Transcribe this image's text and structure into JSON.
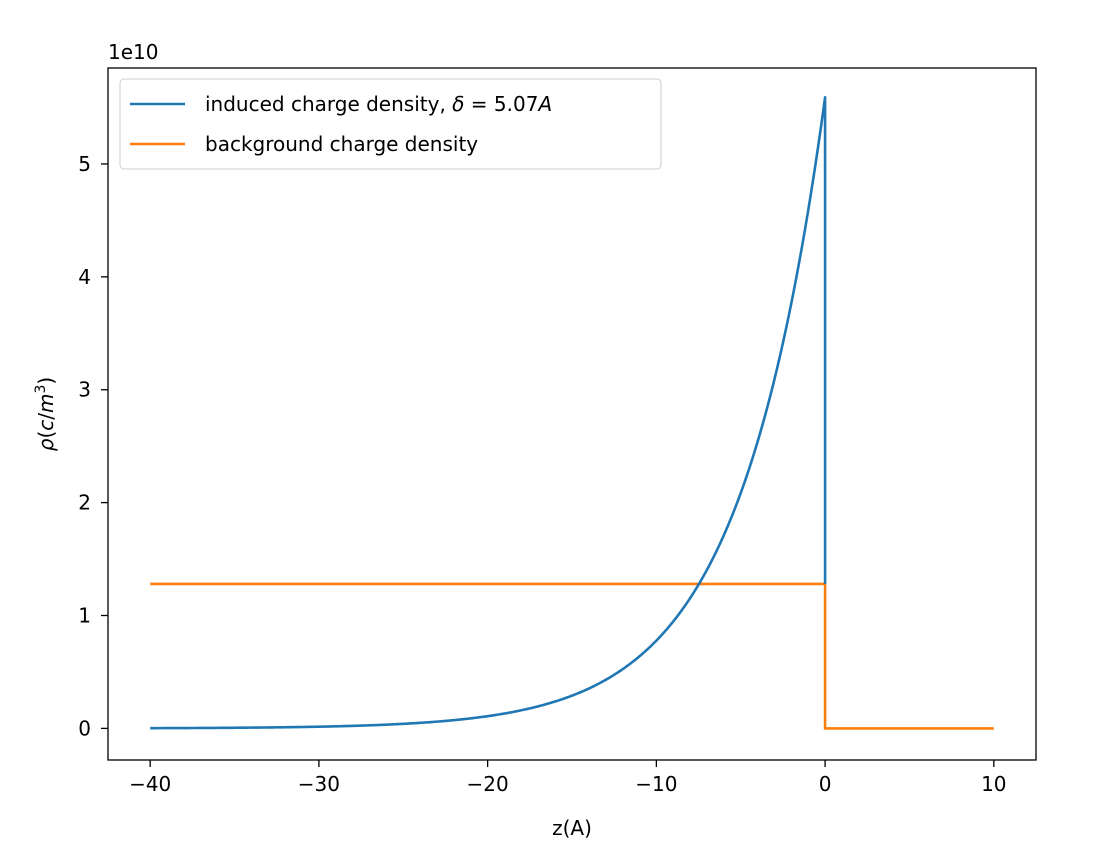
{
  "chart_data": {
    "type": "line",
    "title": "",
    "xlabel": "z(A)",
    "ylabel_parts": {
      "rho": "ρ",
      "open": "(",
      "c": "c",
      "slash": "/",
      "m": "m",
      "exp": "3",
      "close": ")"
    },
    "y_scale_label": "1e10",
    "y_scale": 10000000000,
    "xlim": [
      -42.5,
      12.5
    ],
    "ylim": [
      -0.28,
      5.85
    ],
    "x_ticks": [
      -40,
      -30,
      -20,
      -10,
      0,
      10
    ],
    "x_tick_labels": [
      "−40",
      "−30",
      "−20",
      "−10",
      "0",
      "10"
    ],
    "y_ticks": [
      0,
      1,
      2,
      3,
      4,
      5
    ],
    "y_tick_labels": [
      "0",
      "1",
      "2",
      "3",
      "4",
      "5"
    ],
    "grid": false,
    "legend_position": "top-left",
    "series": [
      {
        "name": "induced charge density, δ = 5.07A",
        "name_parts": {
          "text": "induced charge density, ",
          "delta": "δ",
          "eq": " = 5.07",
          "unit": "A"
        },
        "color": "#1f77b4",
        "form": "exponential",
        "peak": 5.59,
        "decay_length": 5.07,
        "x_start": -40,
        "x_end": 0,
        "drop_to": 1.28
      },
      {
        "name": "background charge density",
        "color": "#ff7f0e",
        "form": "step",
        "x": [
          -40,
          0,
          0,
          10
        ],
        "y": [
          1.28,
          1.28,
          0,
          0
        ]
      }
    ]
  }
}
